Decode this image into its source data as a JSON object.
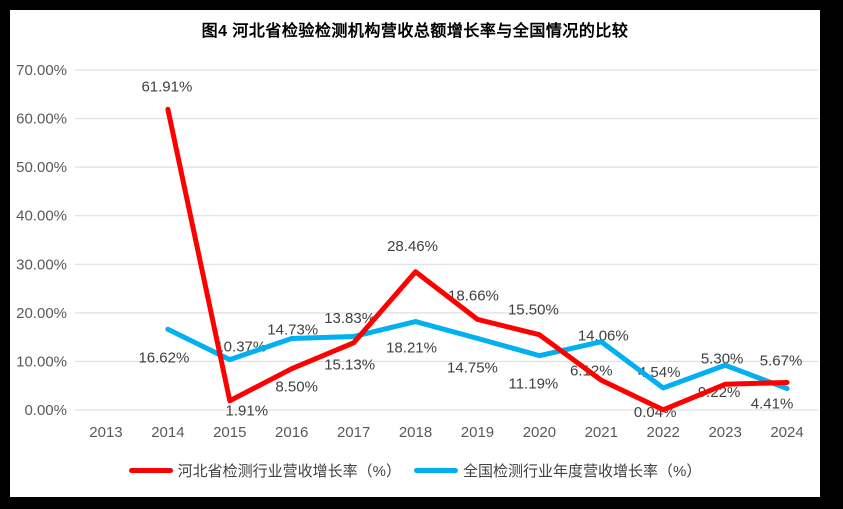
{
  "frame": {
    "border_color": "#000000",
    "background_color": "#ffffff"
  },
  "title": "图4 河北省检验检测机构营收总额增长率与全国情况的比较",
  "chart_data": {
    "type": "line",
    "title": "图4 河北省检验检测机构营收总额增长率与全国情况的比较",
    "categories": [
      "2013",
      "2014",
      "2015",
      "2016",
      "2017",
      "2018",
      "2019",
      "2020",
      "2021",
      "2022",
      "2023",
      "2024"
    ],
    "xlabel": "",
    "ylabel": "",
    "ylim": [
      0,
      70
    ],
    "yticks": [
      "0.00%",
      "10.00%",
      "20.00%",
      "30.00%",
      "40.00%",
      "50.00%",
      "60.00%",
      "70.00%"
    ],
    "grid": true,
    "legend_position": "bottom",
    "gridline_color": "#d9d9d9",
    "axis_tick_color": "#595959",
    "data_label_color": "#404040",
    "series": [
      {
        "name": "河北省检测行业营收增长率（%）",
        "color": "#ff0000",
        "x": [
          "2014",
          "2015",
          "2016",
          "2017",
          "2018",
          "2019",
          "2020",
          "2021",
          "2022",
          "2023",
          "2024"
        ],
        "values": [
          61.91,
          1.91,
          8.5,
          13.83,
          28.46,
          18.66,
          15.5,
          6.12,
          0.04,
          5.3,
          5.67
        ],
        "labels": [
          "61.91%",
          "1.91%",
          "8.50%",
          "13.83%",
          "28.46%",
          "18.66%",
          "15.50%",
          "6.12%",
          "0.04%",
          "5.30%",
          "5.67%"
        ],
        "label_offsets": [
          [
            -1,
            -23
          ],
          [
            17,
            10
          ],
          [
            5,
            18
          ],
          [
            -4,
            -25
          ],
          [
            -3,
            -26
          ],
          [
            -4,
            -24
          ],
          [
            -6,
            -25
          ],
          [
            -10,
            -10
          ],
          [
            -8,
            2
          ],
          [
            -3,
            -26
          ],
          [
            -6,
            -22
          ]
        ]
      },
      {
        "name": "全国检测行业年度营收增长率（%）",
        "color": "#00b0f0",
        "x": [
          "2014",
          "2015",
          "2016",
          "2017",
          "2018",
          "2019",
          "2020",
          "2021",
          "2022",
          "2023",
          "2024"
        ],
        "values": [
          16.62,
          10.37,
          14.73,
          15.13,
          18.21,
          14.75,
          11.19,
          14.06,
          4.54,
          9.22,
          4.41
        ],
        "labels": [
          "16.62%",
          "10.37%",
          "14.73%",
          "15.13%",
          "18.21%",
          "14.75%",
          "11.19%",
          "14.06%",
          "4.54%",
          "9.22%",
          "4.41%"
        ],
        "label_offsets": [
          [
            -4,
            28
          ],
          [
            11,
            -13
          ],
          [
            1,
            -9
          ],
          [
            -4,
            28
          ],
          [
            -4,
            26
          ],
          [
            -5,
            29
          ],
          [
            -6,
            28
          ],
          [
            2,
            -6
          ],
          [
            -4,
            -16
          ],
          [
            -6,
            27
          ],
          [
            -15,
            15
          ]
        ]
      }
    ]
  }
}
